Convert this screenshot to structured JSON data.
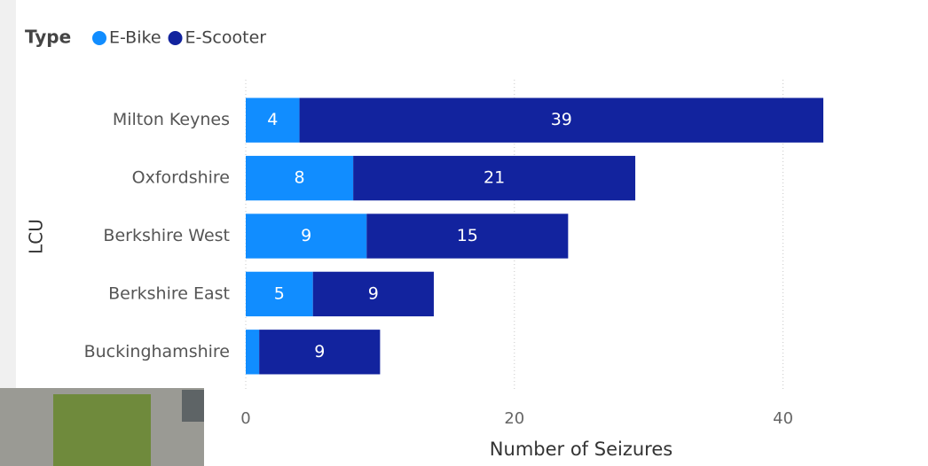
{
  "chart_data": {
    "type": "bar",
    "orientation": "horizontal",
    "stacked": true,
    "legend_title": "Type",
    "categories": [
      "Milton Keynes",
      "Oxfordshire",
      "Berkshire West",
      "Berkshire East",
      "Buckinghamshire"
    ],
    "series": [
      {
        "name": "E-Bike",
        "color": "#118DFF",
        "values": [
          4,
          8,
          9,
          5,
          1
        ]
      },
      {
        "name": "E-Scooter",
        "color": "#12239E",
        "values": [
          39,
          21,
          15,
          9,
          9
        ]
      }
    ],
    "xlim": [
      0,
      50
    ],
    "xticks": [
      0,
      20,
      40
    ],
    "grid": true,
    "x_label": "Number of Seizures",
    "y_label": "LCU"
  }
}
